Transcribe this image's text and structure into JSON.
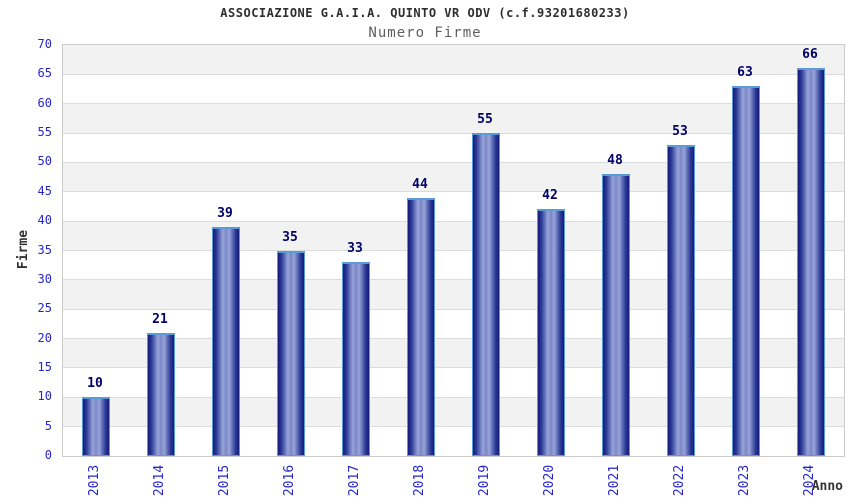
{
  "chart_data": {
    "type": "bar",
    "title": "ASSOCIAZIONE G.A.I.A. QUINTO VR ODV (c.f.93201680233)",
    "subtitle": "Numero Firme",
    "xlabel": "Anno",
    "ylabel": "Firme",
    "categories": [
      "2013",
      "2014",
      "2015",
      "2016",
      "2017",
      "2018",
      "2019",
      "2020",
      "2021",
      "2022",
      "2023",
      "2024"
    ],
    "values": [
      10,
      21,
      39,
      35,
      33,
      44,
      55,
      42,
      48,
      53,
      63,
      66
    ],
    "ylim": [
      0,
      70
    ],
    "ytick_step": 5,
    "yticks": [
      0,
      5,
      10,
      15,
      20,
      25,
      30,
      35,
      40,
      45,
      50,
      55,
      60,
      65,
      70
    ],
    "grid": "horizontal-only",
    "banded_background": true,
    "legend": "none"
  },
  "colors": {
    "title": "#2e2e2e",
    "subtitle": "#5f5f5f",
    "tick_label": "#2626cc",
    "value_label": "#000066",
    "axis_title": "#333333",
    "band": "#f2f2f2",
    "gridline": "#dcdcdc",
    "plot_border": "#cccccc",
    "bar_edge": "#141a78",
    "bar_light": "#98a4d8",
    "bar_outline": "#5b9bd5"
  }
}
